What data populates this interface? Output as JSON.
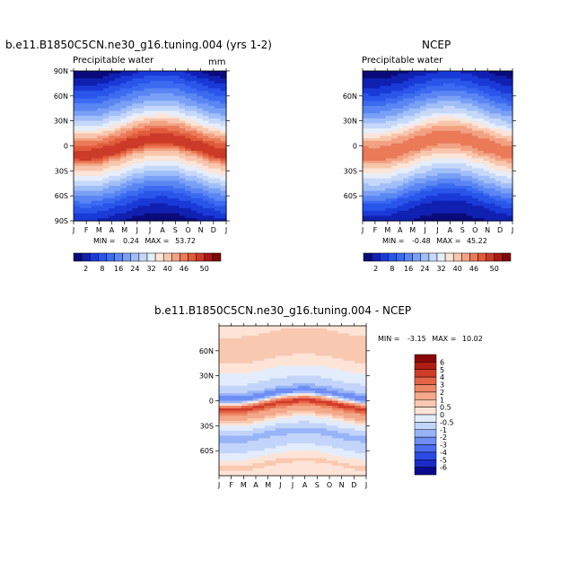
{
  "chart_data": [
    {
      "type": "heatmap",
      "title": "b.e11.B1850C5CN.ne30_g16.tuning.004 (yrs 1-2)",
      "subtitle": "Precipitable water",
      "units": "mm",
      "x_ticks": [
        "J",
        "F",
        "M",
        "A",
        "M",
        "J",
        "J",
        "A",
        "S",
        "O",
        "N",
        "D",
        "J"
      ],
      "y_ticks": [
        "90N",
        "60N",
        "30N",
        "0",
        "30S",
        "60S",
        "90S"
      ],
      "y_range": [
        -90,
        90
      ],
      "min_label": "MIN =",
      "min_value": "0.24",
      "max_label": "MAX =",
      "max_value": "53.72",
      "bands": [
        {
          "lat": 90,
          "v": 2
        },
        {
          "lat": 75,
          "v": 6
        },
        {
          "lat": 60,
          "v": 10
        },
        {
          "lat": 45,
          "v": 16
        },
        {
          "lat": 30,
          "v": 26
        },
        {
          "lat": 15,
          "v": 40
        },
        {
          "lat": 5,
          "v": 46
        },
        {
          "lat": -5,
          "v": 48
        },
        {
          "lat": -15,
          "v": 36
        },
        {
          "lat": -30,
          "v": 26
        },
        {
          "lat": -45,
          "v": 16
        },
        {
          "lat": -60,
          "v": 9
        },
        {
          "lat": -75,
          "v": 5
        },
        {
          "lat": -90,
          "v": 2
        }
      ],
      "seasonal_shift_deg": 10
    },
    {
      "type": "heatmap",
      "title": "NCEP",
      "subtitle": "Precipitable water",
      "x_ticks": [
        "J",
        "F",
        "M",
        "A",
        "M",
        "J",
        "J",
        "A",
        "S",
        "O",
        "N",
        "D",
        "J"
      ],
      "y_ticks": [
        "60N",
        "30N",
        "0",
        "30S",
        "60S"
      ],
      "y_range": [
        -90,
        90
      ],
      "min_label": "MIN =",
      "min_value": "-0.48",
      "max_label": "MAX =",
      "max_value": "45.22",
      "bands": [
        {
          "lat": 90,
          "v": 2
        },
        {
          "lat": 75,
          "v": 5
        },
        {
          "lat": 60,
          "v": 9
        },
        {
          "lat": 45,
          "v": 15
        },
        {
          "lat": 30,
          "v": 24
        },
        {
          "lat": 15,
          "v": 36
        },
        {
          "lat": 5,
          "v": 42
        },
        {
          "lat": -5,
          "v": 42
        },
        {
          "lat": -15,
          "v": 34
        },
        {
          "lat": -30,
          "v": 24
        },
        {
          "lat": -45,
          "v": 15
        },
        {
          "lat": -60,
          "v": 8
        },
        {
          "lat": -75,
          "v": 4
        },
        {
          "lat": -90,
          "v": 2
        }
      ],
      "seasonal_shift_deg": 10
    },
    {
      "type": "heatmap",
      "title": "b.e11.B1850C5CN.ne30_g16.tuning.004 - NCEP",
      "x_ticks": [
        "J",
        "F",
        "M",
        "A",
        "M",
        "J",
        "J",
        "A",
        "S",
        "O",
        "N",
        "D",
        "J"
      ],
      "y_ticks": [
        "60N",
        "30N",
        "0",
        "30S",
        "60S"
      ],
      "y_range": [
        -90,
        90
      ],
      "min_label": "MIN =",
      "min_value": "-3.15",
      "max_label": "MAX =",
      "max_value": "10.02",
      "bands": [
        {
          "lat": 90,
          "v": 0.3
        },
        {
          "lat": 70,
          "v": 0.8
        },
        {
          "lat": 50,
          "v": 0.5
        },
        {
          "lat": 30,
          "v": -0.3
        },
        {
          "lat": 15,
          "v": -0.8
        },
        {
          "lat": 7,
          "v": -3
        },
        {
          "lat": 0,
          "v": 1
        },
        {
          "lat": -5,
          "v": 5
        },
        {
          "lat": -12,
          "v": 2
        },
        {
          "lat": -25,
          "v": 0
        },
        {
          "lat": -40,
          "v": -1.2
        },
        {
          "lat": -60,
          "v": -0.4
        },
        {
          "lat": -75,
          "v": 0.6
        },
        {
          "lat": -90,
          "v": 0.2
        }
      ],
      "seasonal_shift_deg": 6
    }
  ],
  "colorbar_abs": {
    "labels": [
      "2",
      "8",
      "16",
      "24",
      "32",
      "40",
      "46",
      "50"
    ],
    "levels": [
      2,
      4,
      6,
      8,
      10,
      13,
      16,
      20,
      24,
      28,
      32,
      36,
      40,
      43,
      46,
      48,
      50
    ],
    "colors": [
      "#0a0a7a",
      "#1020b0",
      "#1a3ad8",
      "#2a55ea",
      "#3c6af0",
      "#5a86f4",
      "#7aa0f6",
      "#a0bef8",
      "#c6d8fa",
      "#e6eefb",
      "#fbe4d8",
      "#f8c6ac",
      "#f2a282",
      "#ea7a58",
      "#e05a3c",
      "#cc3a28",
      "#a81818",
      "#800808"
    ]
  },
  "colorbar_diff": {
    "labels": [
      "6",
      "5",
      "4",
      "3",
      "2",
      "1",
      "0.5",
      "0",
      "-0.5",
      "-1",
      "-2",
      "-3",
      "-4",
      "-5",
      "-6"
    ],
    "levels": [
      -6,
      -5,
      -4,
      -3,
      -2,
      -1,
      -0.5,
      0,
      0.5,
      1,
      2,
      3,
      4,
      5,
      6
    ],
    "colors": [
      "#0a0a90",
      "#1a2ac8",
      "#2a4ae4",
      "#4a6cf0",
      "#6e8ef4",
      "#98b4f8",
      "#c2d4fa",
      "#e2ecfc",
      "#fde4d6",
      "#f9c8b0",
      "#f4a88a",
      "#ee8866",
      "#e46446",
      "#d03c2a",
      "#b01c14",
      "#8a0808"
    ]
  }
}
